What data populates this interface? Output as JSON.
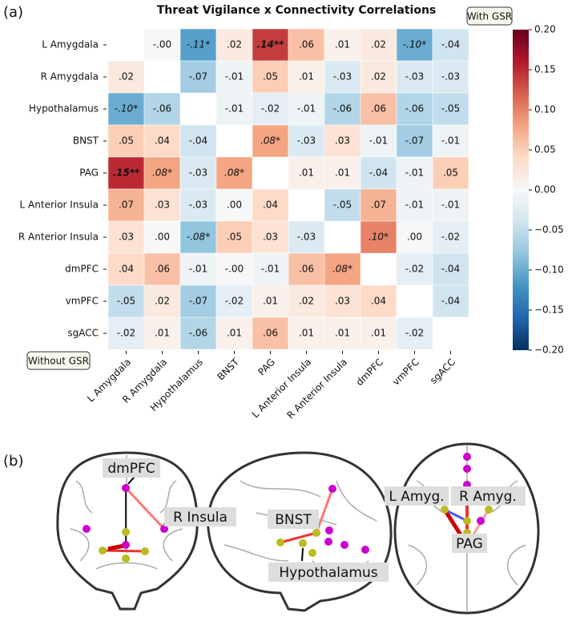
{
  "panel_a_label": "(a)",
  "panel_b_label": "(b)",
  "chart_data": {
    "type": "heatmap",
    "title": "Threat Vigilance x Connectivity Correlations",
    "rows": [
      "L Amygdala",
      "R Amygdala",
      "Hypothalamus",
      "BNST",
      "PAG",
      "L Anterior Insula",
      "R Anterior Insula",
      "dmPFC",
      "vmPFC",
      "sgACC"
    ],
    "columns": [
      "L Amygdala",
      "R Amygdala",
      "Hypothalamus",
      "BNST",
      "PAG",
      "L Anterior Insula",
      "R Anterior Insula",
      "dmPFC",
      "vmPFC",
      "sgACC"
    ],
    "values": [
      [
        null,
        0,
        -0.11,
        0.02,
        0.14,
        0.06,
        0.01,
        0.02,
        -0.1,
        -0.04
      ],
      [
        0.02,
        null,
        -0.07,
        -0.01,
        0.05,
        0.01,
        -0.03,
        0.02,
        -0.03,
        -0.03
      ],
      [
        -0.1,
        -0.06,
        null,
        -0.01,
        -0.02,
        -0.01,
        -0.06,
        0.06,
        -0.06,
        -0.05
      ],
      [
        0.05,
        0.04,
        -0.04,
        null,
        0.08,
        -0.03,
        0.03,
        -0.01,
        -0.07,
        -0.01
      ],
      [
        0.15,
        0.08,
        -0.03,
        0.08,
        null,
        0.01,
        0.01,
        -0.04,
        -0.01,
        0.05
      ],
      [
        0.07,
        0.03,
        -0.03,
        0,
        0.04,
        null,
        -0.05,
        0.07,
        -0.01,
        -0.01
      ],
      [
        0.03,
        0,
        -0.08,
        0.05,
        0.03,
        -0.03,
        null,
        0.1,
        0,
        -0.02
      ],
      [
        0.04,
        0.06,
        -0.01,
        0,
        -0.01,
        0.06,
        0.08,
        null,
        -0.02,
        -0.04
      ],
      [
        -0.05,
        0.02,
        -0.07,
        -0.02,
        0.01,
        0.02,
        0.03,
        0.04,
        null,
        -0.04
      ],
      [
        -0.02,
        0.01,
        -0.06,
        0.01,
        0.06,
        0.01,
        0.01,
        0.01,
        -0.02,
        null
      ]
    ],
    "value_labels": [
      [
        null,
        "-.00",
        "-.11*",
        ".02",
        ".14**",
        ".06",
        ".01",
        ".02",
        "-.10*",
        "-.04"
      ],
      [
        ".02",
        null,
        "-.07",
        "-.01",
        ".05",
        ".01",
        "-.03",
        ".02",
        "-.03",
        "-.03"
      ],
      [
        "-.10*",
        "-.06",
        null,
        "-.01",
        "-.02",
        "-.01",
        "-.06",
        ".06",
        "-.06",
        "-.05"
      ],
      [
        ".05",
        ".04",
        "-.04",
        null,
        ".08*",
        "-.03",
        ".03",
        "-.01",
        "-.07",
        "-.01"
      ],
      [
        ".15**",
        ".08*",
        "-.03",
        ".08*",
        null,
        ".01",
        ".01",
        "-.04",
        "-.01",
        ".05"
      ],
      [
        ".07",
        ".03",
        "-.03",
        ".00",
        ".04",
        null,
        "-.05",
        ".07",
        "-.01",
        "-.01"
      ],
      [
        ".03",
        ".00",
        "-.08*",
        ".05",
        ".03",
        "-.03",
        null,
        ".10*",
        ".00",
        "-.02"
      ],
      [
        ".04",
        ".06",
        "-.01",
        "-.00",
        "-.01",
        ".06",
        ".08*",
        null,
        "-.02",
        "-.04"
      ],
      [
        "-.05",
        ".02",
        "-.07",
        "-.02",
        ".01",
        ".02",
        ".03",
        ".04",
        null,
        "-.04"
      ],
      [
        "-.02",
        ".01",
        "-.06",
        ".01",
        ".06",
        ".01",
        ".01",
        ".01",
        "-.02",
        null
      ]
    ],
    "colormap": "RdBu_r",
    "clim": [
      -0.2,
      0.2
    ],
    "colorbar_ticks": [
      {
        "value": 0.2,
        "label": "0.20"
      },
      {
        "value": 0.15,
        "label": "0.15"
      },
      {
        "value": 0.1,
        "label": "0.10"
      },
      {
        "value": 0.05,
        "label": "0.05"
      },
      {
        "value": 0,
        "label": "0.00"
      },
      {
        "value": -0.05,
        "label": "−0.05"
      },
      {
        "value": -0.1,
        "label": "−0.10"
      },
      {
        "value": -0.15,
        "label": "−0.15"
      },
      {
        "value": -0.2,
        "label": "−0.20"
      }
    ],
    "annotations": [
      "With GSR",
      "Without GSR"
    ]
  },
  "brain_diagram": {
    "labels": [
      "dmPFC",
      "R Insula",
      "BNST",
      "Hypothalamus",
      "L Amyg.",
      "R Amyg.",
      "PAG"
    ]
  }
}
